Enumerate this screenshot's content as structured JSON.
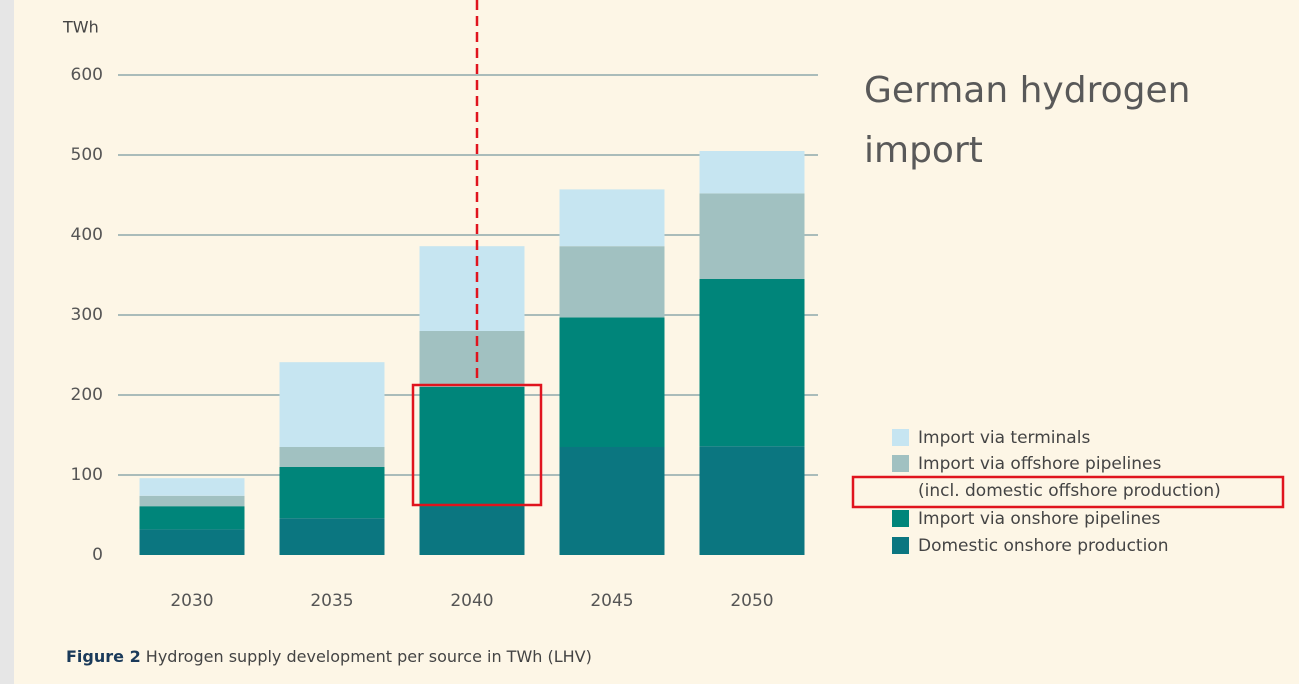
{
  "chart_data": {
    "type": "bar",
    "stacked": true,
    "y_label": "TWh",
    "annotation": "German hydrogen import",
    "caption_label": "Figure 2",
    "caption": "Hydrogen supply development per source in TWh (LHV)",
    "legend_note": "(incl. domestic offshore production)",
    "categories": [
      "2030",
      "2035",
      "2040",
      "2045",
      "2050"
    ],
    "series": [
      {
        "name": "Domestic onshore production",
        "color": "#0b7680",
        "values": [
          32,
          46,
          60,
          135,
          136
        ]
      },
      {
        "name": "Import via onshore pipelines",
        "color": "#00857a",
        "values": [
          29,
          64,
          150,
          162,
          209
        ]
      },
      {
        "name": "Import via offshore pipelines",
        "color": "#a1c1c1",
        "values": [
          13,
          25,
          70,
          89,
          107
        ]
      },
      {
        "name": "Import via terminals",
        "color": "#c6e5f1",
        "values": [
          22,
          106,
          106,
          71,
          53
        ]
      }
    ],
    "ylim": [
      0,
      600
    ],
    "yticks": [
      0,
      100,
      200,
      300,
      400,
      500,
      600
    ],
    "grid": true
  }
}
